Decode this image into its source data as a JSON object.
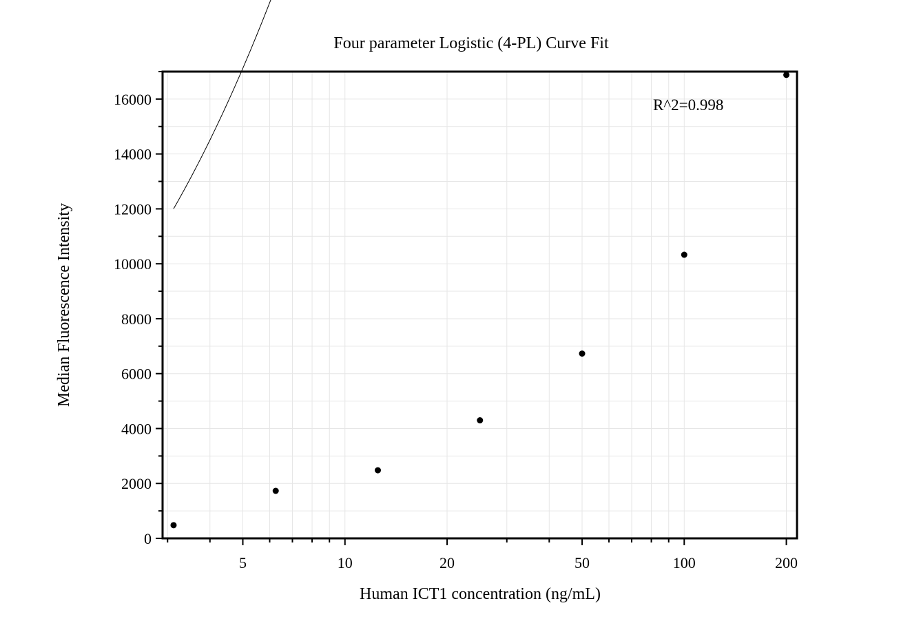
{
  "chart_data": {
    "type": "scatter",
    "title": "Four parameter Logistic (4-PL) Curve Fit",
    "xlabel": "Human ICT1 concentration (ng/mL)",
    "ylabel": "Median Fluorescence Intensity",
    "x_scale": "log",
    "xlim": [
      2.9,
      215
    ],
    "ylim": [
      0,
      17000
    ],
    "x_ticks": [
      5,
      10,
      20,
      50,
      100,
      200
    ],
    "x_tick_labels": [
      "5",
      "10",
      "20",
      "50",
      "100",
      "200"
    ],
    "y_ticks": [
      0,
      2000,
      4000,
      6000,
      8000,
      10000,
      12000,
      14000,
      16000
    ],
    "y_tick_labels": [
      "0",
      "2000",
      "4000",
      "6000",
      "8000",
      "10000",
      "12000",
      "14000",
      "16000"
    ],
    "grid": true,
    "annotation": "R^2=0.998",
    "series": [
      {
        "kind": "points",
        "x": [
          3.125,
          6.25,
          12.5,
          25,
          50,
          100,
          200
        ],
        "y": [
          480,
          1730,
          2480,
          4300,
          6730,
          10330,
          16880
        ]
      },
      {
        "kind": "fit-curve",
        "model": "4PL",
        "x_range": [
          3.125,
          200
        ],
        "params": {
          "A": 0,
          "B": 0.9,
          "C": 25,
          "D": 90000
        }
      }
    ]
  }
}
